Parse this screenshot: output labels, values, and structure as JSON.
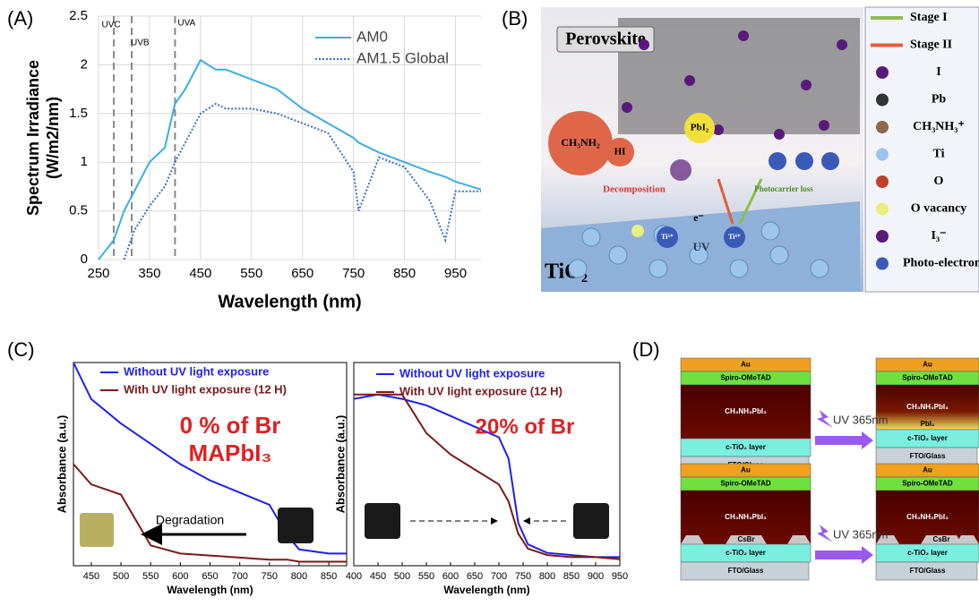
{
  "chart_data": [
    {
      "type": "line",
      "panel_label": "(A)",
      "ylabel": [
        "Spectrum Irradiance",
        "(W/m2/nm)"
      ],
      "xlabel": "Wavelength (nm)",
      "x": [
        250,
        280,
        300,
        320,
        350,
        380,
        400,
        420,
        450,
        480,
        500,
        550,
        600,
        650,
        700,
        750,
        760,
        800,
        850,
        900,
        930,
        950,
        1000
      ],
      "series": [
        {
          "name": "AM0",
          "color": "#3aaee0",
          "style": "solid",
          "values": [
            0,
            0.2,
            0.5,
            0.7,
            1.0,
            1.15,
            1.6,
            1.75,
            2.05,
            1.95,
            1.95,
            1.85,
            1.75,
            1.55,
            1.4,
            1.25,
            1.2,
            1.1,
            1.0,
            0.9,
            0.85,
            0.8,
            0.72
          ]
        },
        {
          "name": "AM1.5 Global",
          "color": "#3a6fc0",
          "style": "dotted",
          "values": [
            null,
            null,
            0,
            0.3,
            0.55,
            0.75,
            1.0,
            1.2,
            1.5,
            1.6,
            1.55,
            1.55,
            1.5,
            1.4,
            1.3,
            0.9,
            0.5,
            1.05,
            0.95,
            0.6,
            0.2,
            0.7,
            0.7
          ]
        }
      ],
      "xlim": [
        250,
        1000
      ],
      "ylim": [
        0,
        2.5
      ],
      "xticks": [
        250,
        350,
        450,
        550,
        650,
        750,
        850,
        950
      ],
      "yticks": [
        0,
        0.5,
        1,
        1.5,
        2,
        2.5
      ],
      "grid": true,
      "legend": "upper right",
      "bands": [
        {
          "label": "UVC",
          "x": 280
        },
        {
          "label": "UVB",
          "x": 315
        },
        {
          "label": "UVA",
          "x": 400
        }
      ]
    },
    {
      "type": "line",
      "panel_label": "(C)",
      "ylabel": [
        "Absorbance (a.u.)"
      ],
      "xlabel": "Wavelength (nm)",
      "x": [
        420,
        450,
        500,
        550,
        600,
        650,
        700,
        750,
        780,
        800,
        850,
        880
      ],
      "series": [
        {
          "name": "Without UV light exposure",
          "color": "#1f1ff0",
          "style": "solid",
          "values": [
            1.0,
            0.82,
            0.7,
            0.6,
            0.5,
            0.42,
            0.36,
            0.3,
            0.15,
            0.08,
            0.06,
            0.06
          ]
        },
        {
          "name": "With UV light exposure (12 H)",
          "color": "#7a1a1a",
          "style": "solid",
          "values": [
            0.5,
            0.4,
            0.35,
            0.1,
            0.06,
            0.05,
            0.04,
            0.03,
            0.03,
            0.02,
            0.02,
            0.02
          ]
        }
      ],
      "xlim": [
        420,
        880
      ],
      "ylim": [
        0,
        1
      ],
      "xticks": [
        450,
        500,
        550,
        600,
        650,
        700,
        750,
        800,
        850
      ],
      "annotations": [
        "0 % of Br",
        "MAPbI₃",
        "Degradation"
      ]
    },
    {
      "type": "line",
      "ylabel": [
        "Absorbance (a.u.)"
      ],
      "xlabel": "Wavelength (nm)",
      "x": [
        400,
        450,
        500,
        550,
        600,
        650,
        700,
        720,
        740,
        760,
        800,
        850,
        900,
        950
      ],
      "series": [
        {
          "name": "Without UV light exposure",
          "color": "#1f1ff0",
          "style": "solid",
          "values": [
            0.78,
            0.8,
            0.78,
            0.75,
            0.7,
            0.65,
            0.6,
            0.5,
            0.2,
            0.1,
            0.06,
            0.05,
            0.04,
            0.04
          ]
        },
        {
          "name": "With UV light exposure (12 H)",
          "color": "#7a1a1a",
          "style": "solid",
          "values": [
            0.8,
            0.8,
            0.8,
            0.62,
            0.52,
            0.45,
            0.38,
            0.3,
            0.15,
            0.08,
            0.05,
            0.04,
            0.04,
            0.03
          ]
        }
      ],
      "xlim": [
        400,
        950
      ],
      "ylim": [
        0,
        0.95
      ],
      "xticks": [
        400,
        450,
        500,
        550,
        600,
        650,
        700,
        750,
        800,
        850,
        900,
        950
      ],
      "annotations": [
        "20% of Br"
      ]
    }
  ],
  "panel_b": {
    "label": "(B)",
    "top": "Perovskite",
    "bottom": "TiO₂",
    "scene": [
      "CH₃NH₂",
      "HI",
      "PbI₂",
      "Decomposition",
      "Photocarrier loss",
      "e⁻",
      "UV",
      "Ti³⁺",
      "Ti⁴⁺",
      "I₃⁻"
    ],
    "legend": [
      "Stage I",
      "Stage II",
      "I",
      "Pb",
      "CH₃NH₃⁺",
      "Ti",
      "O",
      "O vacancy",
      "I₃⁻",
      "Photo-electron"
    ]
  },
  "panel_d": {
    "label": "(D)",
    "stacks": [
      [
        "Au",
        "Spiro-OMeTAD",
        "CH₃NH₃PbI₃",
        "c-TiO₂ layer",
        "FTO/Glass"
      ],
      [
        "Au",
        "Spiro-OMeTAD",
        "CH₃NH₃PbI₃",
        "PbI₂",
        "c-TiO₂ layer",
        "FTO/Glass"
      ],
      [
        "Au",
        "Spiro-OMeTAD",
        "CH₃NH₃PbI₃",
        "CsBr",
        "c-TiO₂ layer",
        "FTO/Glass"
      ],
      [
        "Au",
        "Spiro-OMeTAD",
        "CH₃NH₃PbI₃",
        "CsBr",
        "c-TiO₂ layer",
        "FTO/Glass"
      ]
    ],
    "arrows": [
      "UV 365nm",
      "UV 365nm"
    ]
  }
}
